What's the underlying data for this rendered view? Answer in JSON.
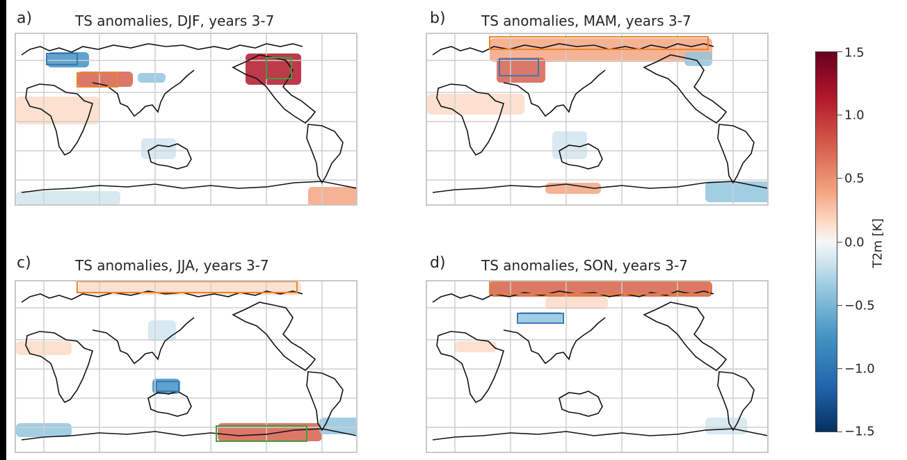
{
  "panels": [
    {
      "label": "a)",
      "title": "TS anomalies, DJF, years 3-7",
      "boxes": [
        {
          "color": "#3a78b5"
        },
        {
          "color": "#e8852b"
        },
        {
          "color": "#3e9e3e"
        }
      ]
    },
    {
      "label": "b)",
      "title": "TS anomalies, MAM, years 3-7",
      "boxes": [
        {
          "color": "#e8852b"
        },
        {
          "color": "#3a78b5"
        }
      ]
    },
    {
      "label": "c)",
      "title": "TS anomalies, JJA, years 3-7",
      "boxes": [
        {
          "color": "#e8852b"
        },
        {
          "color": "#3a78b5"
        },
        {
          "color": "#3e9e3e"
        }
      ]
    },
    {
      "label": "d)",
      "title": "TS anomalies, SON, years 3-7",
      "boxes": [
        {
          "color": "#e8852b"
        },
        {
          "color": "#3a78b5"
        }
      ]
    }
  ],
  "colorbar": {
    "label": "T2m [K]",
    "range": [
      -1.5,
      1.5
    ],
    "ticks": [
      "1.5",
      "1.0",
      "0.5",
      "0.0",
      "−0.5",
      "−1.0",
      "−1.5"
    ],
    "colormap": "RdBu_r"
  },
  "chart_data": {
    "type": "heatmap",
    "variable": "T2m [K]",
    "grid": true,
    "colorbar_range": [
      -1.5,
      1.5
    ],
    "maps": [
      {
        "panel": "a)",
        "season": "DJF"
      },
      {
        "panel": "b)",
        "season": "MAM"
      },
      {
        "panel": "c)",
        "season": "JJA"
      },
      {
        "panel": "d)",
        "season": "SON"
      }
    ]
  }
}
